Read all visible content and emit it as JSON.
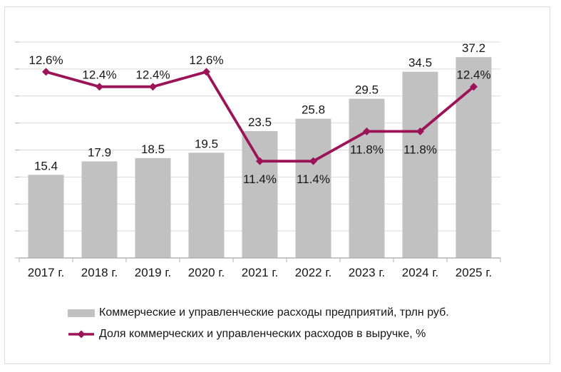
{
  "colors": {
    "bar": "#c1c1c1",
    "line": "#9c1458",
    "grid": "#d9d9d9",
    "axis": "#b3b3b3",
    "text": "#161616",
    "border": "#dadada",
    "background": "#ffffff"
  },
  "chart_data": {
    "type": "bar",
    "subtype": "combo-bar-line",
    "categories": [
      "2017 г.",
      "2018 г.",
      "2019 г.",
      "2020 г.",
      "2021 г.",
      "2022 г.",
      "2023 г.",
      "2024 г.",
      "2025 г."
    ],
    "series": [
      {
        "name": "Коммерческие и управленческие расходы предприятий, трлн руб.",
        "type": "bar",
        "values": [
          15.4,
          17.9,
          18.5,
          19.5,
          23.5,
          25.8,
          29.5,
          34.5,
          37.2
        ],
        "data_labels": [
          "15.4",
          "17.9",
          "18.5",
          "19.5",
          "23.5",
          "25.8",
          "29.5",
          "34.5",
          "37.2"
        ]
      },
      {
        "name": "Доля коммерческих и управленческих расходов в выручке, %",
        "type": "line",
        "values": [
          12.6,
          12.4,
          12.4,
          12.6,
          11.4,
          11.4,
          11.8,
          11.8,
          12.4
        ],
        "data_labels": [
          "12.6%",
          "12.4%",
          "12.4%",
          "12.6%",
          "11.4%",
          "11.4%",
          "11.8%",
          "11.8%",
          "12.4%"
        ],
        "label_positions": [
          "above",
          "above",
          "above",
          "above",
          "below",
          "below",
          "below",
          "below",
          "above"
        ]
      }
    ],
    "title": "",
    "xlabel": "",
    "ylabel": "",
    "left_axis": {
      "min": 0,
      "max": 40,
      "grid_step": 5,
      "labels_visible": false
    },
    "right_axis": {
      "min": 10.1,
      "max": 13.0,
      "labels_visible": false
    },
    "grid": true,
    "legend_position": "bottom"
  },
  "legend": {
    "items": [
      {
        "label": "Коммерческие и управленческие расходы предприятий, трлн руб.",
        "swatch": "bar"
      },
      {
        "label": "Доля коммерческих и управленческих расходов в выручке, %",
        "swatch": "line"
      }
    ]
  }
}
